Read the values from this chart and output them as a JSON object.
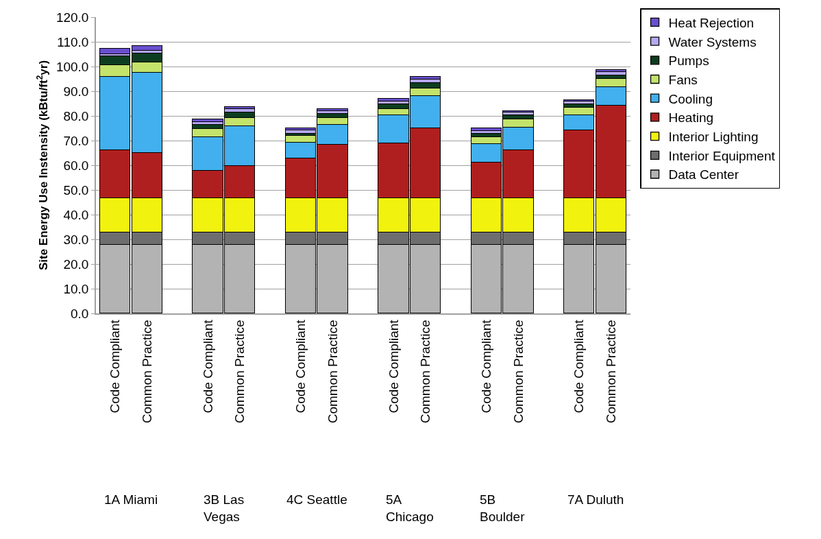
{
  "chart_data": {
    "type": "bar",
    "stacked": true,
    "ylabel": "Site Energy Use Instensity (kBtu/ft$^{2}$yr)",
    "categories": [
      "Code Compliant",
      "Common Practice",
      "Code Compliant",
      "Common Practice",
      "Code Compliant",
      "Common Practice",
      "Code Compliant",
      "Common Practice",
      "Code Compliant",
      "Common Practice",
      "Code Compliant",
      "Common Practice"
    ],
    "annotations": [
      "1A Miami",
      "3B Las\nVegas",
      "4C Seattle",
      "5A\nChicago",
      "5B\nBoulder",
      "7A Duluth"
    ],
    "series": [
      {
        "name": "Data Center",
        "color": "#b3b3b3",
        "values": [
          27.7,
          27.7,
          27.7,
          27.7,
          27.7,
          27.7,
          27.7,
          27.7,
          27.7,
          27.7,
          27.7,
          27.7
        ]
      },
      {
        "name": "Interior Equipment",
        "color": "#6e6e6e",
        "values": [
          5.0,
          5.0,
          5.0,
          5.0,
          5.0,
          5.0,
          5.0,
          5.0,
          5.0,
          5.0,
          5.0,
          5.0
        ]
      },
      {
        "name": "Interior Lighting",
        "color": "#f2f20f",
        "values": [
          14.0,
          14.0,
          14.0,
          14.0,
          14.0,
          14.0,
          14.0,
          14.0,
          14.0,
          14.0,
          14.0,
          14.0
        ]
      },
      {
        "name": "Heating",
        "color": "#b01f1f",
        "values": [
          19.4,
          18.3,
          11.2,
          12.9,
          16.1,
          21.6,
          22.2,
          28.4,
          14.4,
          19.4,
          27.5,
          37.5
        ]
      },
      {
        "name": "Cooling",
        "color": "#42b0ee",
        "values": [
          29.6,
          32.4,
          13.6,
          16.2,
          6.4,
          8.1,
          11.4,
          12.9,
          7.6,
          9.2,
          6.1,
          7.6
        ]
      },
      {
        "name": "Fans",
        "color": "#c3e36b",
        "values": [
          4.8,
          4.2,
          3.2,
          3.3,
          2.7,
          2.9,
          2.6,
          3.1,
          2.8,
          3.2,
          3.1,
          3.2
        ]
      },
      {
        "name": "Pumps",
        "color": "#0d3d20",
        "values": [
          3.7,
          3.8,
          1.7,
          2.2,
          1.0,
          1.5,
          1.8,
          2.3,
          1.3,
          1.7,
          1.3,
          1.3
        ]
      },
      {
        "name": "Water Systems",
        "color": "#b5a8f0",
        "values": [
          0.9,
          0.9,
          1.1,
          1.4,
          1.2,
          1.2,
          1.2,
          1.2,
          1.2,
          1.1,
          1.1,
          1.5
        ]
      },
      {
        "name": "Heat Rejection",
        "color": "#6a4fcf",
        "values": [
          2.1,
          2.1,
          1.2,
          0.9,
          0.8,
          0.7,
          1.0,
          1.1,
          0.9,
          0.6,
          0.5,
          0.7
        ]
      }
    ],
    "ylim": [
      0,
      120
    ],
    "yticks": [
      {
        "value": 0,
        "label": "0.0"
      },
      {
        "value": 10,
        "label": "10.0"
      },
      {
        "value": 20,
        "label": "20.0"
      },
      {
        "value": 30,
        "label": "30.0"
      },
      {
        "value": 40,
        "label": "40.0"
      },
      {
        "value": 50,
        "label": "50.0"
      },
      {
        "value": 60,
        "label": "60.0"
      },
      {
        "value": 70,
        "label": "70.0"
      },
      {
        "value": 80,
        "label": "80.0"
      },
      {
        "value": 90,
        "label": "90.0"
      },
      {
        "value": 100,
        "label": "100.0"
      },
      {
        "value": 110,
        "label": "110.0"
      },
      {
        "value": 120,
        "label": "120.0"
      }
    ],
    "grid": "y",
    "legend": "right"
  }
}
